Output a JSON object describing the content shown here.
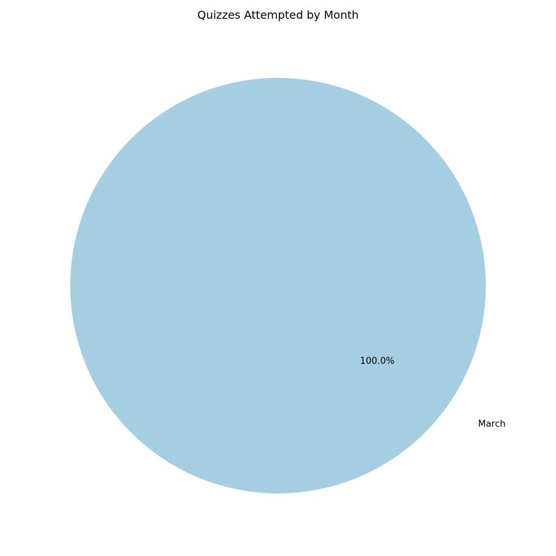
{
  "chart_data": {
    "type": "pie",
    "title": "Quizzes Attempted by Month",
    "categories": [
      "March"
    ],
    "values": [
      100
    ],
    "percent_labels": [
      "100.0%"
    ],
    "colors": [
      "#a6cee3"
    ],
    "legend": "none"
  }
}
